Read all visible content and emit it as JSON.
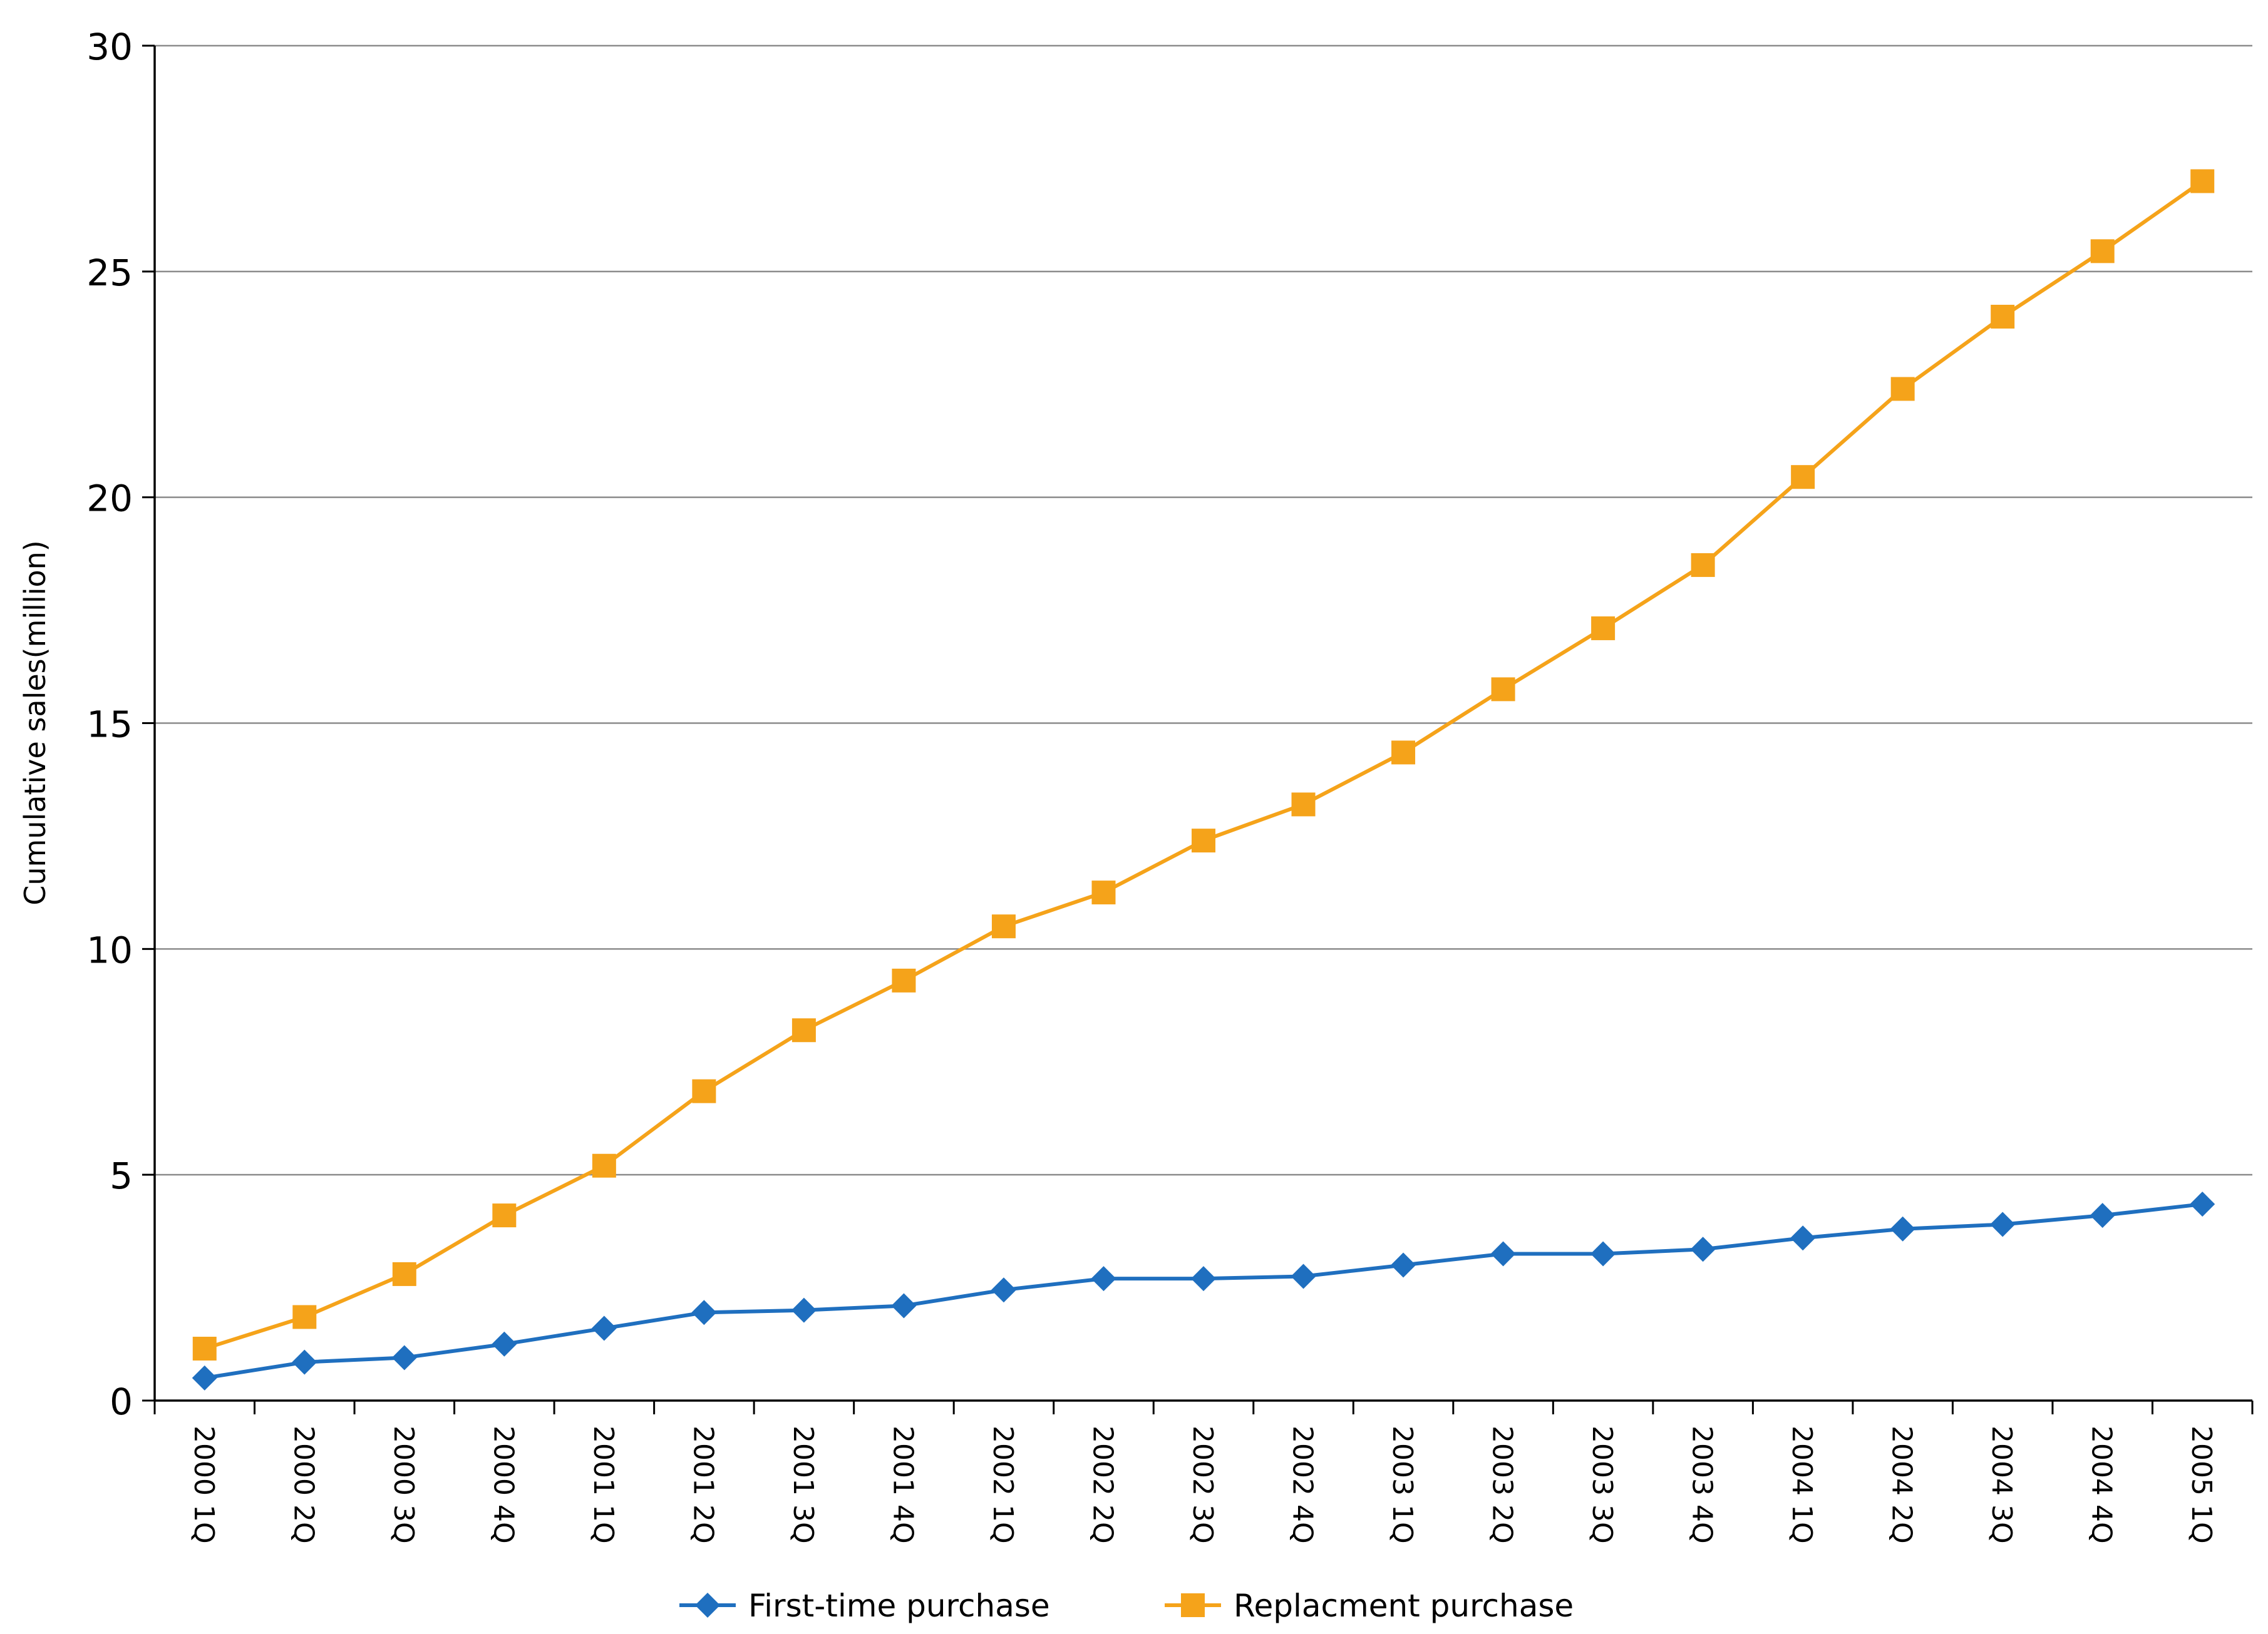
{
  "chart_data": {
    "type": "line",
    "title": "",
    "xlabel": "",
    "ylabel": "Cumulative sales(million)",
    "ylim": [
      0,
      30
    ],
    "yticks": [
      "0",
      "5",
      "10",
      "15",
      "20",
      "25",
      "30"
    ],
    "grid": true,
    "legend_position": "bottom-center",
    "categories": [
      "2000 1Q",
      "2000 2Q",
      "2000 3Q",
      "2000 4Q",
      "2001 1Q",
      "2001 2Q",
      "2001 3Q",
      "2001 4Q",
      "2002 1Q",
      "2002 2Q",
      "2002 3Q",
      "2002 4Q",
      "2003 1Q",
      "2003 2Q",
      "2003 3Q",
      "2003 4Q",
      "2004 1Q",
      "2004 2Q",
      "2004 3Q",
      "2004 4Q",
      "2005 1Q"
    ],
    "series": [
      {
        "name": "First-time purchase",
        "color": "#1f6fbf",
        "marker": "diamond",
        "values": [
          0.5,
          0.85,
          0.95,
          1.25,
          1.6,
          1.95,
          2.0,
          2.1,
          2.45,
          2.7,
          2.7,
          2.75,
          3.0,
          3.25,
          3.25,
          3.35,
          3.6,
          3.8,
          3.9,
          4.1,
          4.35
        ]
      },
      {
        "name": "Replacment purchase",
        "color": "#f5a31a",
        "marker": "square",
        "values": [
          1.15,
          1.85,
          2.8,
          4.1,
          5.2,
          6.85,
          8.2,
          9.3,
          10.5,
          11.25,
          12.4,
          13.2,
          14.35,
          15.75,
          17.1,
          18.5,
          20.45,
          22.4,
          24.0,
          25.45,
          27.0
        ]
      }
    ]
  }
}
